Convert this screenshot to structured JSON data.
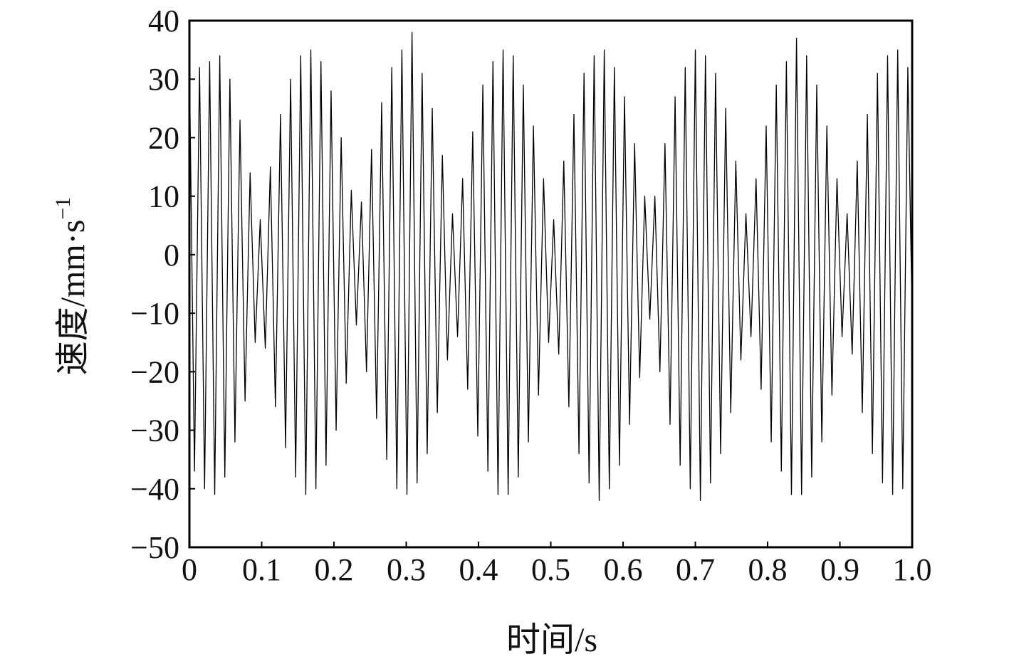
{
  "chart_data": {
    "type": "line",
    "x_label": "时间/s",
    "y_label": "速度/mm·s",
    "y_label_superscript": "−1",
    "color": "#000000",
    "grid": false,
    "xlim": [
      0,
      1
    ],
    "ylim": [
      -50,
      40
    ],
    "xticks": [
      0,
      0.1,
      0.2,
      0.3,
      0.4,
      0.5,
      0.6,
      0.7,
      0.8,
      0.9,
      {
        "value": 1,
        "label": "1.0"
      }
    ],
    "yticks": [
      {
        "value": -50,
        "label": "−50"
      },
      {
        "value": -40,
        "label": "−40"
      },
      {
        "value": -30,
        "label": "−30"
      },
      {
        "value": -20,
        "label": "−20"
      },
      {
        "value": -10,
        "label": "−10"
      },
      0,
      10,
      20,
      30,
      40
    ],
    "x": [
      0,
      0.007,
      0.014,
      0.021,
      0.028,
      0.035,
      0.042,
      0.049,
      0.056,
      0.063,
      0.07,
      0.077,
      0.084,
      0.091,
      0.098,
      0.105,
      0.112,
      0.119,
      0.126,
      0.133,
      0.14,
      0.147,
      0.154,
      0.161,
      0.168,
      0.175,
      0.182,
      0.189,
      0.196,
      0.203,
      0.21,
      0.217,
      0.224,
      0.231,
      0.238,
      0.245,
      0.252,
      0.259,
      0.266,
      0.273,
      0.28,
      0.287,
      0.294,
      0.301,
      0.308,
      0.315,
      0.322,
      0.329,
      0.336,
      0.343,
      0.35,
      0.357,
      0.364,
      0.371,
      0.378,
      0.385,
      0.392,
      0.399,
      0.406,
      0.413,
      0.42,
      0.427,
      0.434,
      0.441,
      0.448,
      0.455,
      0.462,
      0.469,
      0.476,
      0.483,
      0.49,
      0.497,
      0.504,
      0.511,
      0.518,
      0.525,
      0.532,
      0.539,
      0.546,
      0.553,
      0.56,
      0.567,
      0.574,
      0.581,
      0.588,
      0.595,
      0.602,
      0.609,
      0.616,
      0.623,
      0.63,
      0.637,
      0.644,
      0.651,
      0.658,
      0.665,
      0.672,
      0.679,
      0.686,
      0.693,
      0.7,
      0.707,
      0.714,
      0.721,
      0.728,
      0.735,
      0.742,
      0.749,
      0.756,
      0.763,
      0.77,
      0.777,
      0.784,
      0.791,
      0.798,
      0.805,
      0.812,
      0.819,
      0.826,
      0.833,
      0.84,
      0.847,
      0.854,
      0.861,
      0.868,
      0.875,
      0.882,
      0.889,
      0.896,
      0.903,
      0.91,
      0.917,
      0.924,
      0.931,
      0.938,
      0.945,
      0.952,
      0.959,
      0.966,
      0.973,
      0.98,
      0.987,
      0.994,
      1.0
    ],
    "values": [
      33,
      -37,
      32,
      -40,
      33,
      -41,
      34,
      -38,
      30,
      -32,
      23,
      -25,
      14,
      -15,
      6,
      -16,
      15,
      -26,
      24,
      -33,
      30,
      -38,
      34,
      -41,
      35,
      -40,
      33,
      -36,
      28,
      -30,
      20,
      -22,
      11,
      -12,
      9,
      -20,
      18,
      -28,
      26,
      -35,
      32,
      -40,
      35,
      -41,
      38,
      -39,
      31,
      -34,
      25,
      -27,
      17,
      -18,
      7,
      -14,
      13,
      -23,
      21,
      -31,
      29,
      -37,
      33,
      -41,
      35,
      -41,
      34,
      -38,
      29,
      -32,
      22,
      -24,
      13,
      -15,
      6,
      -17,
      16,
      -26,
      24,
      -34,
      31,
      -39,
      34,
      -42,
      35,
      -40,
      32,
      -36,
      27,
      -29,
      19,
      -21,
      10,
      -11,
      10,
      -20,
      19,
      -29,
      27,
      -36,
      32,
      -40,
      35,
      -42,
      34,
      -39,
      31,
      -34,
      25,
      -27,
      16,
      -18,
      7,
      -14,
      13,
      -23,
      22,
      -32,
      29,
      -37,
      33,
      -41,
      37,
      -41,
      34,
      -38,
      29,
      -32,
      22,
      -24,
      13,
      -14,
      7,
      -17,
      16,
      -27,
      24,
      -34,
      31,
      -39,
      34,
      -41,
      35,
      -40,
      32,
      -11
    ]
  }
}
